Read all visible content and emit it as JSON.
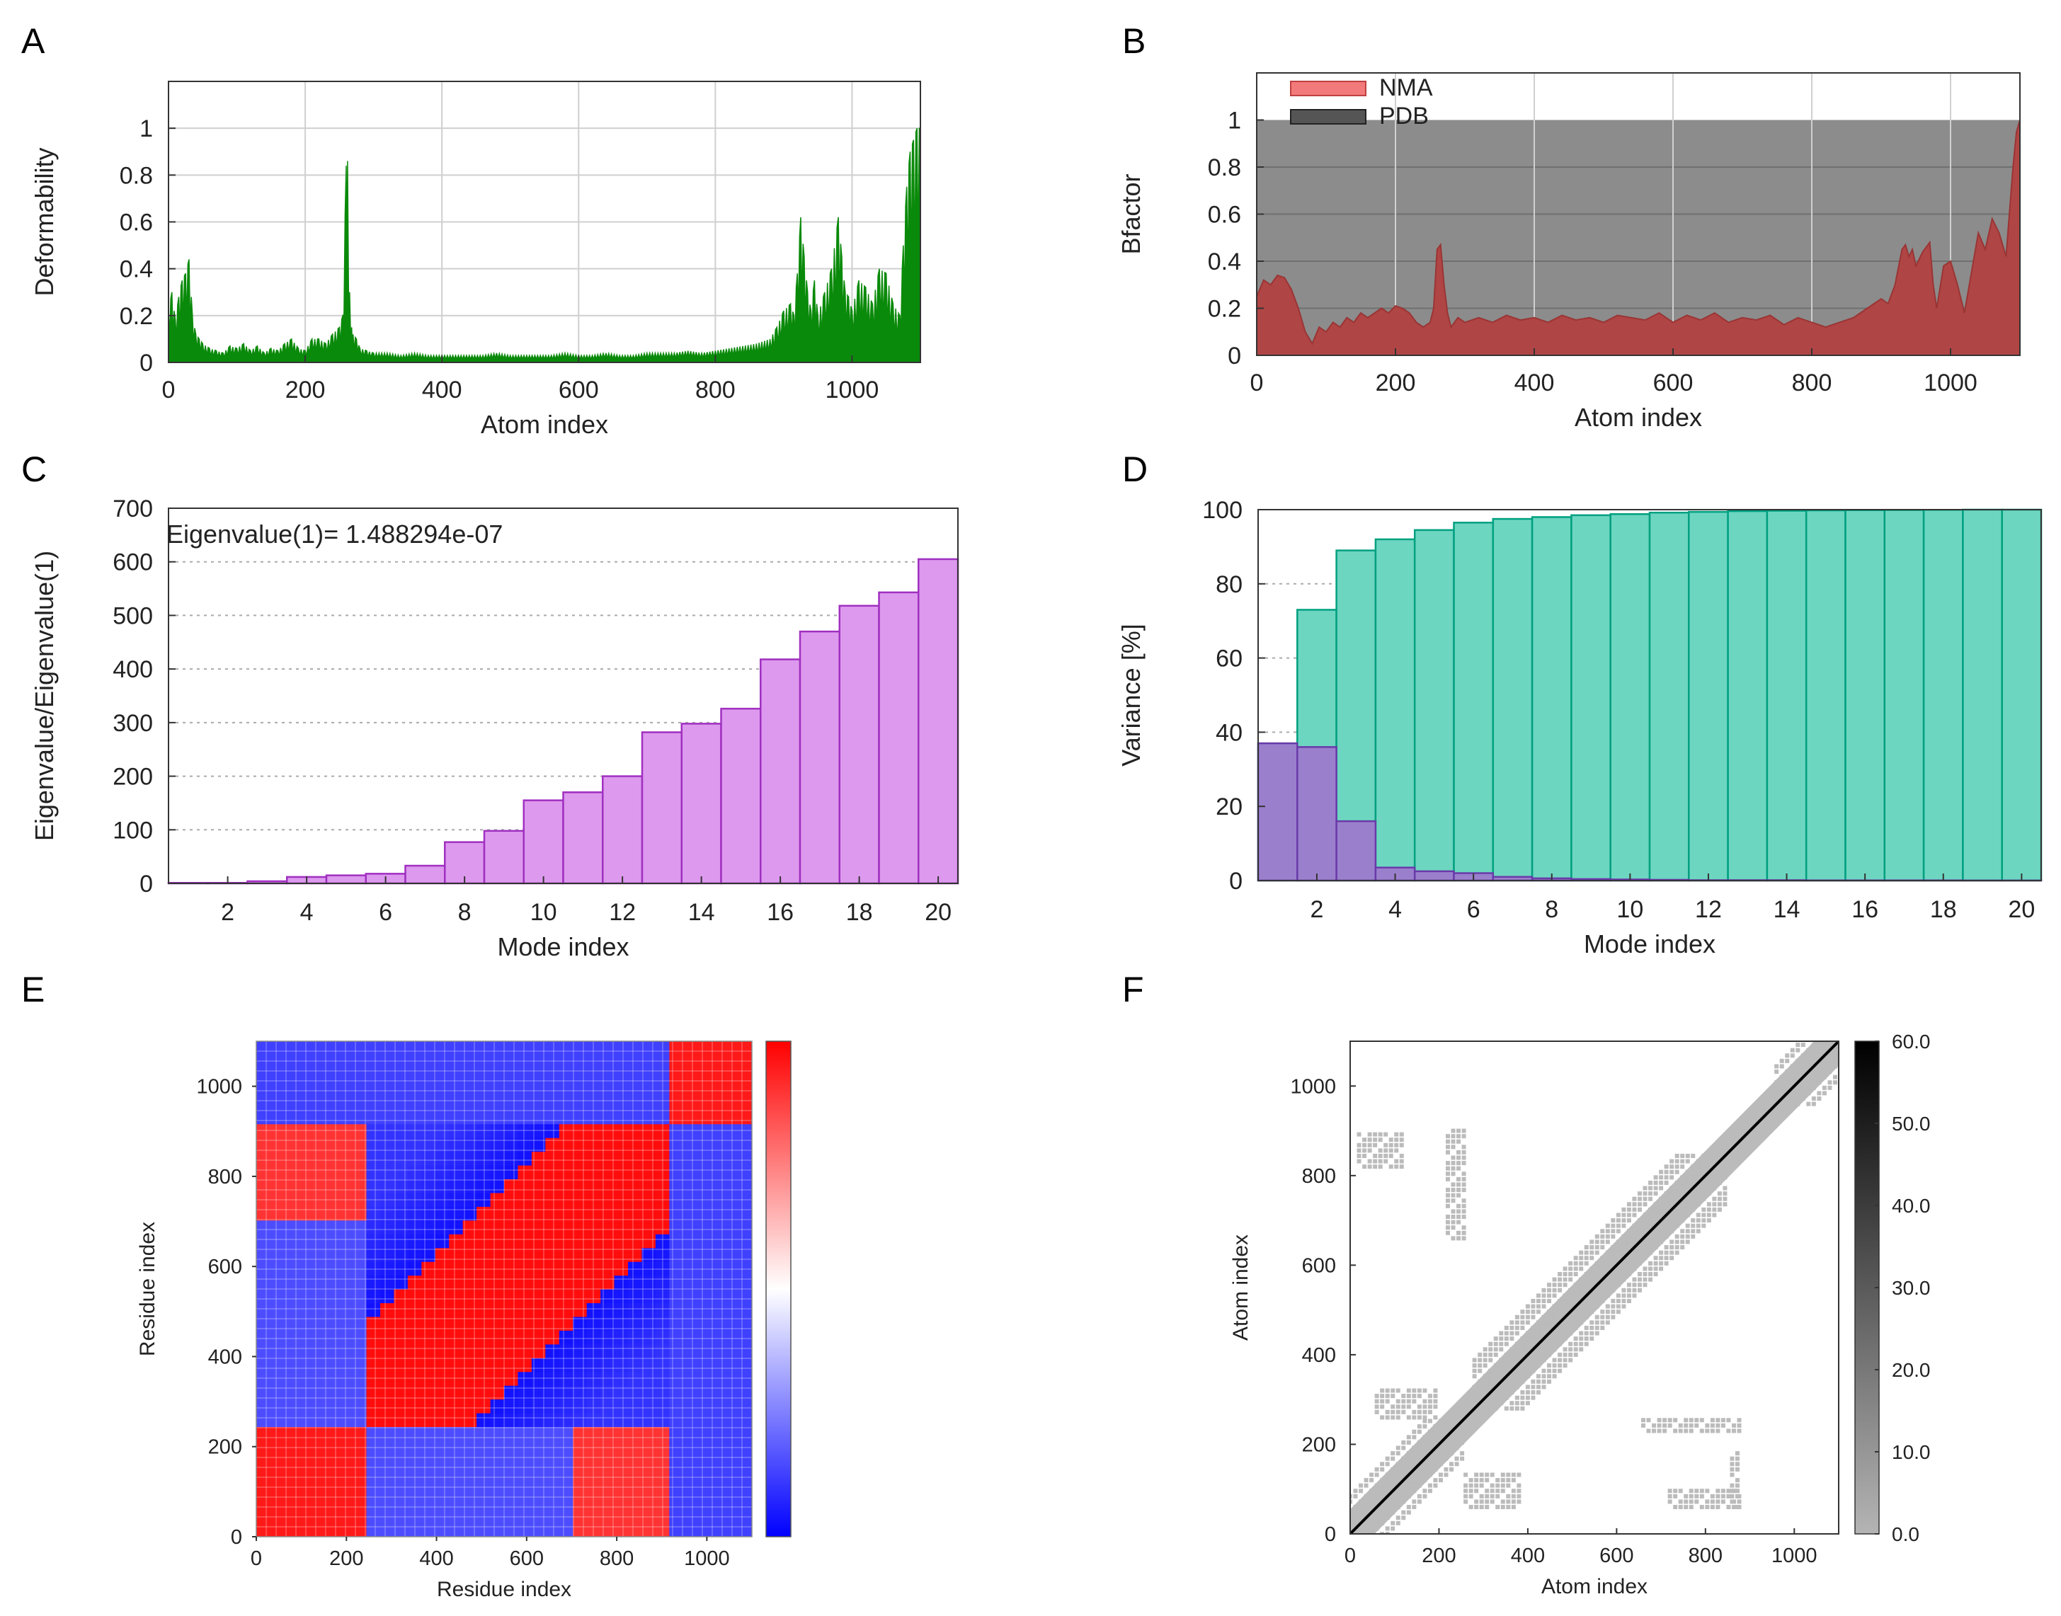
{
  "panels": {
    "A": {
      "letter": "A"
    },
    "B": {
      "letter": "B"
    },
    "C": {
      "letter": "C"
    },
    "D": {
      "letter": "D"
    },
    "E": {
      "letter": "E"
    },
    "F": {
      "letter": "F"
    }
  },
  "chart_data": [
    {
      "id": "A",
      "type": "area",
      "xlabel": "Atom index",
      "ylabel": "Deformability",
      "xlim": [
        0,
        1100
      ],
      "ylim": [
        0,
        1.2
      ],
      "xticks": [
        0,
        200,
        400,
        600,
        800,
        1000
      ],
      "yticks": [
        0,
        0.2,
        0.4,
        0.6,
        0.8,
        1
      ],
      "ytick_labels": [
        "0",
        "0.2",
        "0.4",
        "0.6",
        "0.8",
        "1"
      ],
      "grid": true,
      "color": "#0a8a0a",
      "x": [
        0,
        5,
        10,
        15,
        20,
        25,
        30,
        35,
        40,
        45,
        50,
        60,
        70,
        80,
        90,
        100,
        110,
        120,
        130,
        140,
        150,
        160,
        170,
        180,
        190,
        200,
        210,
        220,
        230,
        240,
        250,
        255,
        260,
        262,
        265,
        268,
        270,
        275,
        280,
        290,
        300,
        320,
        340,
        360,
        380,
        400,
        420,
        440,
        460,
        480,
        500,
        520,
        540,
        560,
        580,
        600,
        620,
        640,
        660,
        680,
        700,
        720,
        740,
        760,
        780,
        800,
        820,
        840,
        860,
        880,
        890,
        900,
        910,
        915,
        920,
        925,
        930,
        935,
        940,
        945,
        950,
        960,
        970,
        980,
        985,
        990,
        995,
        1000,
        1010,
        1020,
        1030,
        1040,
        1050,
        1060,
        1070,
        1075,
        1080,
        1085,
        1090,
        1095,
        1100
      ],
      "values": [
        0.22,
        0.3,
        0.18,
        0.28,
        0.35,
        0.38,
        0.44,
        0.2,
        0.12,
        0.1,
        0.08,
        0.06,
        0.05,
        0.04,
        0.07,
        0.06,
        0.08,
        0.05,
        0.07,
        0.04,
        0.06,
        0.05,
        0.08,
        0.1,
        0.06,
        0.05,
        0.1,
        0.1,
        0.08,
        0.12,
        0.15,
        0.2,
        0.84,
        0.86,
        0.3,
        0.15,
        0.12,
        0.1,
        0.06,
        0.05,
        0.04,
        0.04,
        0.03,
        0.04,
        0.03,
        0.03,
        0.03,
        0.03,
        0.03,
        0.04,
        0.03,
        0.03,
        0.03,
        0.03,
        0.04,
        0.03,
        0.03,
        0.04,
        0.03,
        0.03,
        0.04,
        0.04,
        0.04,
        0.05,
        0.04,
        0.05,
        0.06,
        0.07,
        0.08,
        0.1,
        0.15,
        0.22,
        0.25,
        0.2,
        0.38,
        0.62,
        0.45,
        0.3,
        0.22,
        0.35,
        0.2,
        0.3,
        0.4,
        0.62,
        0.45,
        0.3,
        0.28,
        0.22,
        0.35,
        0.32,
        0.25,
        0.4,
        0.38,
        0.25,
        0.2,
        0.5,
        0.75,
        0.9,
        0.95,
        1.0,
        1.0
      ]
    },
    {
      "id": "B",
      "type": "area",
      "xlabel": "Atom index",
      "ylabel": "Bfactor",
      "xlim": [
        0,
        1100
      ],
      "ylim": [
        0,
        1.2
      ],
      "xticks": [
        0,
        200,
        400,
        600,
        800,
        1000
      ],
      "yticks": [
        0,
        0.2,
        0.4,
        0.6,
        0.8,
        1
      ],
      "ytick_labels": [
        "0",
        "0.2",
        "0.4",
        "0.6",
        "0.8",
        "1"
      ],
      "legend": "top-left",
      "grid": true,
      "series": [
        {
          "name": "PDB",
          "color": "#8c8c8c",
          "x": [
            0,
            1100
          ],
          "values": [
            1.0,
            1.0
          ]
        },
        {
          "name": "NMA",
          "color": "#b04545",
          "x": [
            0,
            10,
            20,
            30,
            40,
            50,
            60,
            70,
            80,
            90,
            100,
            110,
            120,
            130,
            140,
            150,
            160,
            170,
            180,
            190,
            200,
            210,
            220,
            230,
            240,
            250,
            255,
            260,
            265,
            270,
            275,
            280,
            290,
            300,
            320,
            340,
            360,
            380,
            400,
            420,
            440,
            460,
            480,
            500,
            520,
            540,
            560,
            580,
            600,
            620,
            640,
            660,
            680,
            700,
            720,
            740,
            760,
            780,
            800,
            820,
            840,
            860,
            880,
            900,
            910,
            920,
            930,
            935,
            940,
            945,
            950,
            960,
            970,
            975,
            980,
            990,
            1000,
            1010,
            1020,
            1030,
            1040,
            1050,
            1060,
            1070,
            1080,
            1090,
            1095,
            1100
          ],
          "values": [
            0.25,
            0.32,
            0.3,
            0.34,
            0.33,
            0.28,
            0.2,
            0.1,
            0.05,
            0.12,
            0.1,
            0.14,
            0.12,
            0.16,
            0.14,
            0.18,
            0.16,
            0.18,
            0.2,
            0.18,
            0.21,
            0.2,
            0.18,
            0.14,
            0.12,
            0.14,
            0.2,
            0.45,
            0.47,
            0.3,
            0.18,
            0.12,
            0.16,
            0.14,
            0.16,
            0.14,
            0.17,
            0.15,
            0.16,
            0.14,
            0.17,
            0.15,
            0.16,
            0.14,
            0.17,
            0.16,
            0.15,
            0.18,
            0.14,
            0.17,
            0.15,
            0.18,
            0.14,
            0.16,
            0.15,
            0.17,
            0.13,
            0.16,
            0.14,
            0.12,
            0.14,
            0.16,
            0.2,
            0.24,
            0.22,
            0.3,
            0.45,
            0.47,
            0.42,
            0.45,
            0.38,
            0.44,
            0.48,
            0.3,
            0.2,
            0.38,
            0.4,
            0.3,
            0.18,
            0.35,
            0.52,
            0.45,
            0.58,
            0.52,
            0.42,
            0.8,
            0.95,
            1.0
          ]
        }
      ]
    },
    {
      "id": "C",
      "type": "bar",
      "xlabel": "Mode index",
      "ylabel": "Eigenvalue/Eigenvalue(1)",
      "annotation": "Eigenvalue(1)= 1.488294e-07",
      "xlim": [
        0.5,
        20.5
      ],
      "ylim": [
        0,
        700
      ],
      "xticks": [
        2,
        4,
        6,
        8,
        10,
        12,
        14,
        16,
        18,
        20
      ],
      "yticks": [
        0,
        100,
        200,
        300,
        400,
        500,
        600,
        700
      ],
      "grid": true,
      "color": "#dd99ee",
      "categories": [
        1,
        2,
        3,
        4,
        5,
        6,
        7,
        8,
        9,
        10,
        11,
        12,
        13,
        14,
        15,
        16,
        17,
        18,
        19,
        20
      ],
      "values": [
        1,
        1,
        4,
        12,
        15,
        18,
        33,
        77,
        98,
        155,
        170,
        200,
        282,
        298,
        326,
        418,
        470,
        518,
        543,
        605
      ]
    },
    {
      "id": "D",
      "type": "bar",
      "xlabel": "Mode index",
      "ylabel": "Variance [%]",
      "xlim": [
        0.5,
        20.5
      ],
      "ylim": [
        0,
        100
      ],
      "xticks": [
        2,
        4,
        6,
        8,
        10,
        12,
        14,
        16,
        18,
        20
      ],
      "yticks": [
        0,
        20,
        40,
        60,
        80,
        100
      ],
      "grid": true,
      "categories": [
        1,
        2,
        3,
        4,
        5,
        6,
        7,
        8,
        9,
        10,
        11,
        12,
        13,
        14,
        15,
        16,
        17,
        18,
        19,
        20
      ],
      "series": [
        {
          "color": "#6dd6c0",
          "values": [
            37,
            73,
            89,
            92,
            94.5,
            96.5,
            97.5,
            98,
            98.5,
            98.8,
            99.2,
            99.4,
            99.6,
            99.7,
            99.8,
            99.85,
            99.9,
            99.95,
            100,
            100
          ]
        },
        {
          "color": "#9a80cc",
          "values": [
            37,
            36,
            16,
            3.5,
            2.5,
            2,
            1,
            0.6,
            0.4,
            0.3,
            0.2,
            0.1,
            0.1,
            0.1,
            0.05,
            0.05,
            0.05,
            0.05,
            0.02,
            0.02
          ]
        }
      ]
    },
    {
      "id": "E",
      "type": "heatmap",
      "xlabel": "Residue index",
      "ylabel": "Residue index",
      "xlim": [
        0,
        1100
      ],
      "ylim": [
        0,
        1100
      ],
      "xticks": [
        0,
        200,
        400,
        600,
        800,
        1000
      ],
      "yticks": [
        0,
        200,
        400,
        600,
        800,
        1000
      ],
      "colormap": [
        "#0000ff",
        "#ffffff",
        "#ff0000"
      ],
      "domain_bounds": [
        250,
        920
      ]
    },
    {
      "id": "F",
      "type": "heatmap",
      "xlabel": "Atom index",
      "ylabel": "Atom index",
      "xlim": [
        0,
        1100
      ],
      "ylim": [
        0,
        1100
      ],
      "xticks": [
        0,
        200,
        400,
        600,
        800,
        1000
      ],
      "yticks": [
        0,
        200,
        400,
        600,
        800,
        1000
      ],
      "colorbar_ticks": [
        "0.0",
        "10.0",
        "20.0",
        "30.0",
        "40.0",
        "50.0",
        "60.0"
      ],
      "colormap": [
        "#b4b4b4",
        "#000000"
      ],
      "diagonal_color": "#000000",
      "point_color": "#bbbbbb"
    }
  ]
}
